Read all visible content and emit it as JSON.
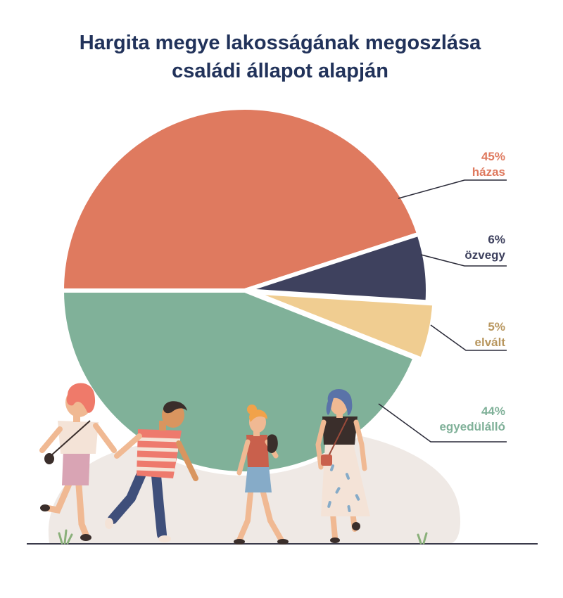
{
  "chart_data": {
    "type": "pie",
    "title_lines": [
      "Hargita megye lakosságának megoszlása",
      "családi állapot alapján"
    ],
    "slices": [
      {
        "label": "házas",
        "value": 45,
        "value_text": "45%",
        "color": "#df7a5f"
      },
      {
        "label": "özvegy",
        "value": 6,
        "value_text": "6%",
        "color": "#3e415e"
      },
      {
        "label": "elvált",
        "value": 5,
        "value_text": "5%",
        "color": "#f0cd91"
      },
      {
        "label": "egyedülálló",
        "value": 44,
        "value_text": "44%",
        "color": "#80b199"
      }
    ],
    "exploded_slice": "elvált",
    "unit": "%"
  },
  "colors": {
    "title": "#21325a",
    "ground_line": "#3a3a4a",
    "backdrop": "#efe9e5",
    "label_houses": "#df7a5f",
    "label_widowed": "#3e415e",
    "label_divorced": "#b8965e",
    "label_single": "#80b199"
  },
  "illustration": {
    "icon": "walking-people-illustration"
  }
}
